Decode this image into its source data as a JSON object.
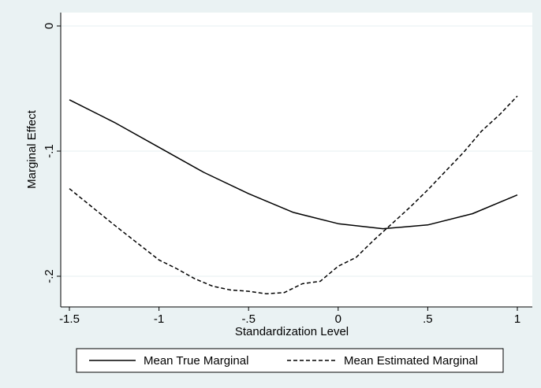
{
  "chart_data": {
    "type": "line",
    "title": "",
    "xlabel": "Standardization Level",
    "ylabel": "Marginal Effect",
    "xlim": [
      -1.5,
      1
    ],
    "ylim": [
      -0.22,
      0
    ],
    "xticks": [
      {
        "value": -1.5,
        "label": "-1.5"
      },
      {
        "value": -1,
        "label": "-1"
      },
      {
        "value": -0.5,
        "label": "-.5"
      },
      {
        "value": 0,
        "label": "0"
      },
      {
        "value": 0.5,
        "label": ".5"
      },
      {
        "value": 1,
        "label": "1"
      }
    ],
    "yticks": [
      {
        "value": 0,
        "label": "0"
      },
      {
        "value": -0.1,
        "label": "-.1"
      },
      {
        "value": -0.2,
        "label": "-.2"
      }
    ],
    "grid": true,
    "legend_position": "bottom",
    "colors": {
      "background": "#eaf2f3",
      "plot_background": "#ffffff",
      "grid": "#eaf2f3",
      "line": "#000000"
    },
    "series": [
      {
        "name": "Mean True Marginal",
        "style": "solid",
        "x": [
          -1.5,
          -1.25,
          -1.0,
          -0.75,
          -0.5,
          -0.25,
          0.0,
          0.25,
          0.5,
          0.75,
          1.0
        ],
        "y": [
          -0.059,
          -0.077,
          -0.097,
          -0.117,
          -0.134,
          -0.149,
          -0.158,
          -0.162,
          -0.159,
          -0.15,
          -0.135
        ]
      },
      {
        "name": "Mean Estimated Marginal",
        "style": "dashed",
        "x": [
          -1.5,
          -1.25,
          -1.0,
          -0.9,
          -0.8,
          -0.7,
          -0.6,
          -0.5,
          -0.4,
          -0.3,
          -0.2,
          -0.1,
          0.0,
          0.1,
          0.2,
          0.3,
          0.4,
          0.5,
          0.6,
          0.7,
          0.8,
          0.9,
          1.0
        ],
        "y": [
          -0.13,
          -0.159,
          -0.187,
          -0.194,
          -0.202,
          -0.208,
          -0.211,
          -0.212,
          -0.214,
          -0.213,
          -0.206,
          -0.204,
          -0.192,
          -0.185,
          -0.171,
          -0.158,
          -0.145,
          -0.131,
          -0.116,
          -0.101,
          -0.084,
          -0.071,
          -0.056
        ]
      }
    ]
  }
}
